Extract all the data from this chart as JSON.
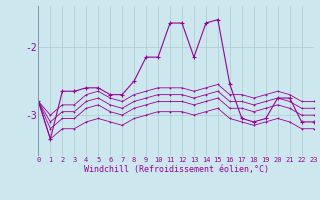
{
  "xlabel": "Windchill (Refroidissement éolien,°C)",
  "bg_color": "#cce8ee",
  "line_color": "#990099",
  "grid_color": "#aacccc",
  "xmin": 0,
  "xmax": 23,
  "ymin": -3.6,
  "ymax": -1.4,
  "yticks": [
    -3,
    -2
  ],
  "x": [
    0,
    1,
    2,
    3,
    4,
    5,
    6,
    7,
    8,
    9,
    10,
    11,
    12,
    13,
    14,
    15,
    16,
    17,
    18,
    19,
    20,
    21,
    22,
    23
  ],
  "series": [
    [
      -2.8,
      -3.0,
      -2.85,
      -2.85,
      -2.7,
      -2.65,
      -2.75,
      -2.8,
      -2.7,
      -2.65,
      -2.6,
      -2.6,
      -2.6,
      -2.65,
      -2.6,
      -2.55,
      -2.7,
      -2.7,
      -2.75,
      -2.7,
      -2.65,
      -2.7,
      -2.8,
      -2.8
    ],
    [
      -2.8,
      -3.1,
      -2.95,
      -2.95,
      -2.8,
      -2.75,
      -2.85,
      -2.9,
      -2.8,
      -2.75,
      -2.7,
      -2.7,
      -2.7,
      -2.75,
      -2.7,
      -2.65,
      -2.8,
      -2.8,
      -2.85,
      -2.8,
      -2.75,
      -2.8,
      -2.9,
      -2.9
    ],
    [
      -2.8,
      -3.2,
      -3.05,
      -3.05,
      -2.9,
      -2.85,
      -2.95,
      -3.0,
      -2.9,
      -2.85,
      -2.8,
      -2.8,
      -2.8,
      -2.85,
      -2.8,
      -2.75,
      -2.9,
      -2.9,
      -2.95,
      -2.9,
      -2.85,
      -2.9,
      -3.0,
      -3.0
    ],
    [
      -2.8,
      -3.35,
      -3.2,
      -3.2,
      -3.1,
      -3.05,
      -3.1,
      -3.15,
      -3.05,
      -3.0,
      -2.95,
      -2.95,
      -2.95,
      -3.0,
      -2.95,
      -2.9,
      -3.05,
      -3.1,
      -3.15,
      -3.1,
      -3.05,
      -3.1,
      -3.2,
      -3.2
    ]
  ],
  "main_y": [
    -2.8,
    -3.35,
    -2.65,
    -2.65,
    -2.6,
    -2.6,
    -2.7,
    -2.7,
    -2.5,
    -2.15,
    -2.15,
    -1.65,
    -1.65,
    -2.15,
    -1.65,
    -1.6,
    -2.55,
    -3.05,
    -3.1,
    -3.05,
    -2.75,
    -2.75,
    -3.1,
    -3.1
  ]
}
